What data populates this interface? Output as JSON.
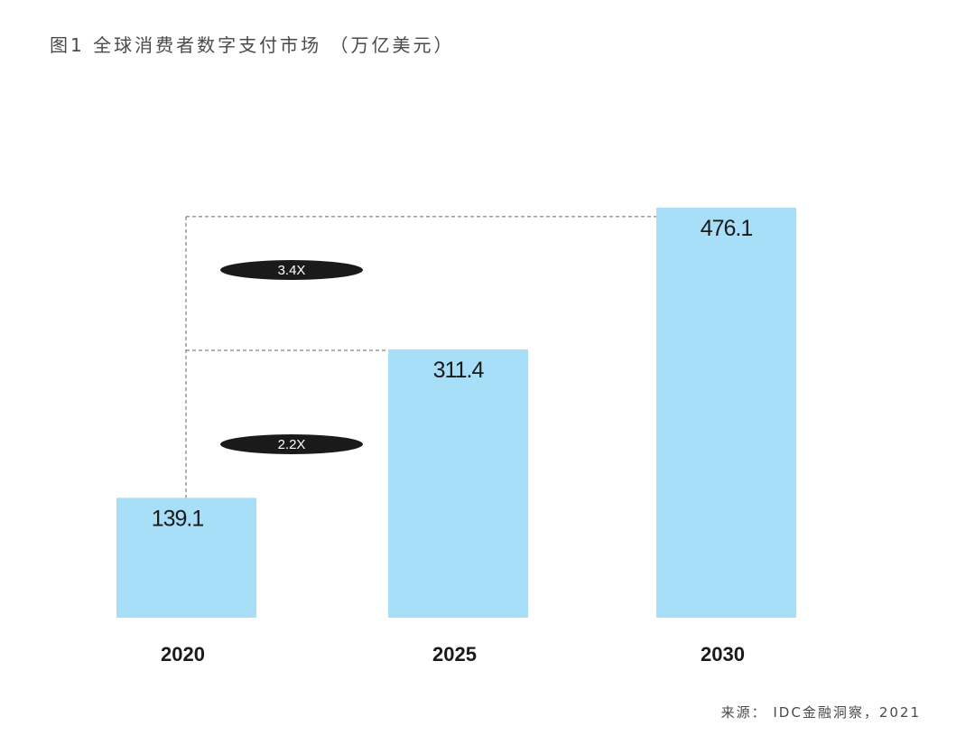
{
  "title": "图1 全球消费者数字支付市场 （万亿美元）",
  "source": "来源： IDC金融洞察，2021",
  "colors": {
    "bar": "#a8dff8",
    "text": "#1a1a1a",
    "muted": "#4a4a4a",
    "badge": "#1a1a1a",
    "badge_text": "#ffffff",
    "dash": "#666666"
  },
  "chart_data": {
    "type": "bar",
    "title": "图1 全球消费者数字支付市场 （万亿美元）",
    "xlabel": "",
    "ylabel": "",
    "categories": [
      "2020",
      "2025",
      "2030"
    ],
    "values": [
      139.1,
      311.4,
      476.1
    ],
    "value_labels": [
      "139.1",
      "311.4",
      "476.1"
    ],
    "grid": false,
    "legend": "none",
    "annotations": [
      {
        "label": "2.2X",
        "from": "2020",
        "to": "2025"
      },
      {
        "label": "3.4X",
        "from": "2020",
        "to": "2030"
      }
    ]
  }
}
